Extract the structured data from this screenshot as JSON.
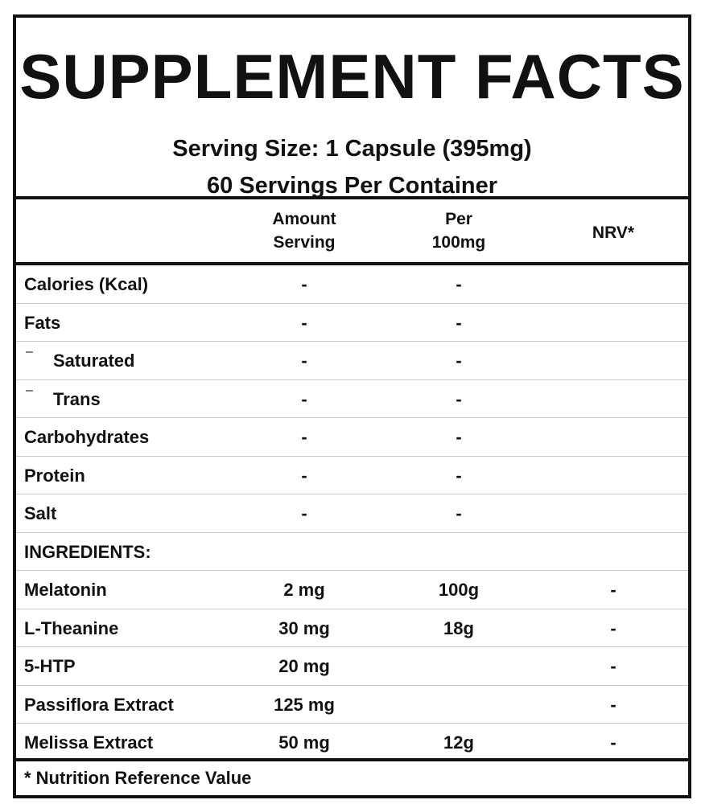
{
  "header": {
    "title": "SUPPLEMENT FACTS",
    "serving_size": "Serving Size: 1 Capsule (395mg)",
    "servings_per_container": "60 Servings Per Container"
  },
  "columns": {
    "amount_line1": "Amount",
    "amount_line2": "Serving",
    "per_line1": "Per",
    "per_line2": "100mg",
    "nrv": "NRV*"
  },
  "rows": [
    {
      "name": "Calories (Kcal)",
      "amount": "-",
      "per100": "-",
      "nrv": "",
      "indent": false
    },
    {
      "name": "Fats",
      "amount": "-",
      "per100": "-",
      "nrv": "",
      "indent": false
    },
    {
      "name": "Saturated",
      "amount": "-",
      "per100": "-",
      "nrv": "",
      "indent": true,
      "prefix": "–"
    },
    {
      "name": "Trans",
      "amount": "-",
      "per100": "-",
      "nrv": "",
      "indent": true,
      "prefix": "–"
    },
    {
      "name": "Carbohydrates",
      "amount": "-",
      "per100": "-",
      "nrv": "",
      "indent": false
    },
    {
      "name": "Protein",
      "amount": "-",
      "per100": "-",
      "nrv": "",
      "indent": false
    },
    {
      "name": "Salt",
      "amount": "-",
      "per100": "-",
      "nrv": "",
      "indent": false
    },
    {
      "name": "INGREDIENTS:",
      "amount": "",
      "per100": "",
      "nrv": "",
      "indent": false
    },
    {
      "name": "Melatonin",
      "amount": "2 mg",
      "per100": "100g",
      "nrv": "-",
      "indent": false
    },
    {
      "name": "L-Theanine",
      "amount": "30 mg",
      "per100": "18g",
      "nrv": "-",
      "indent": false
    },
    {
      "name": "5-HTP",
      "amount": "20 mg",
      "per100": "",
      "nrv": "-",
      "indent": false
    },
    {
      "name": "Passiflora Extract",
      "amount": "125 mg",
      "per100": "",
      "nrv": "-",
      "indent": false
    },
    {
      "name": "Melissa Extract",
      "amount": "50 mg",
      "per100": "12g",
      "nrv": "-",
      "indent": false
    }
  ],
  "footer": {
    "note": "* Nutrition Reference Value"
  }
}
